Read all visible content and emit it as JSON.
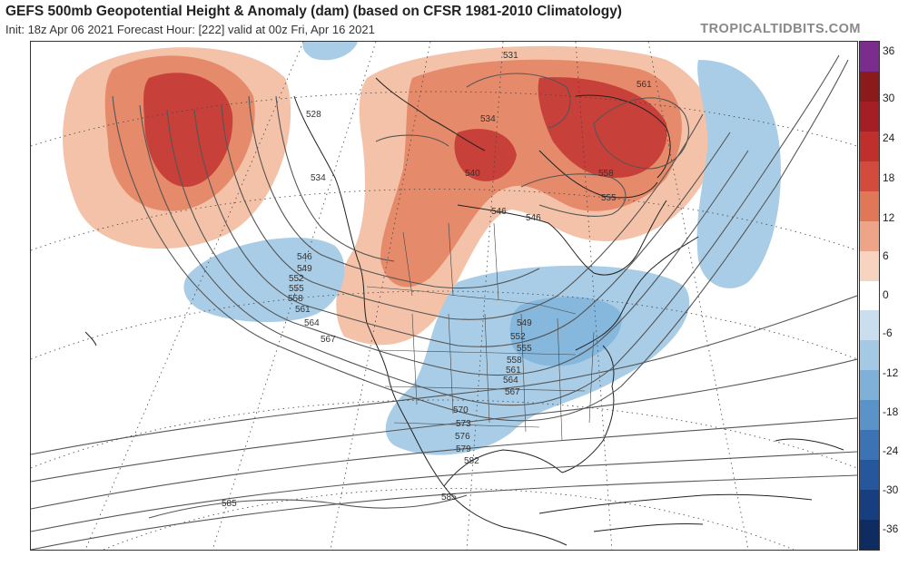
{
  "header": {
    "title": "GEFS 500mb Geopotential Height & Anomaly (dam) (based on CFSR 1981-2010 Climatology)",
    "subtitle": "Init: 18z Apr 06 2021   Forecast Hour: [222]   valid at 00z Fri, Apr 16 2021",
    "credit": "TROPICALTIDBITS.COM"
  },
  "colorbar": {
    "ticks": [
      "36",
      "30",
      "24",
      "18",
      "12",
      "6",
      "0",
      "-6",
      "-12",
      "-18",
      "-24",
      "-30",
      "-36"
    ],
    "colors": [
      "#7b2d8e",
      "#8b1a1a",
      "#a31f23",
      "#bf2f2b",
      "#d24b3c",
      "#e07858",
      "#eda487",
      "#f7d3c0",
      "#ffffff",
      "#c9dff0",
      "#a3c9e5",
      "#7eb0d8",
      "#5a93c7",
      "#3b73b5",
      "#26579c",
      "#173f80",
      "#0f2c61"
    ]
  },
  "map": {
    "contour_labels": [
      "531",
      "534",
      "528",
      "534",
      "561",
      "558",
      "555",
      "546",
      "546",
      "540",
      "546",
      "549",
      "552",
      "555",
      "558",
      "561",
      "564",
      "567",
      "549",
      "552",
      "555",
      "558",
      "561",
      "564",
      "567",
      "570",
      "573",
      "576",
      "579",
      "582",
      "585",
      "585"
    ],
    "anomaly_colors": {
      "positive_light": "#f4c2a8",
      "positive_mid": "#e58a6a",
      "positive_strong": "#c8403a",
      "negative_light": "#a9cde6",
      "negative_mid": "#86b7dc"
    }
  }
}
